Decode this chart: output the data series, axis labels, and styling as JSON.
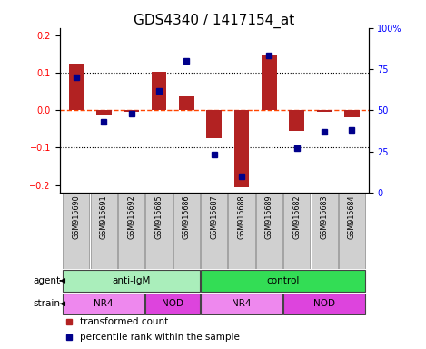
{
  "title": "GDS4340 / 1417154_at",
  "samples": [
    "GSM915690",
    "GSM915691",
    "GSM915692",
    "GSM915685",
    "GSM915686",
    "GSM915687",
    "GSM915688",
    "GSM915689",
    "GSM915682",
    "GSM915683",
    "GSM915684"
  ],
  "transformed_count": [
    0.125,
    -0.015,
    -0.005,
    0.102,
    0.038,
    -0.075,
    -0.205,
    0.148,
    -0.055,
    -0.005,
    -0.02
  ],
  "percentile_rank": [
    70,
    43,
    48,
    62,
    80,
    23,
    10,
    83,
    27,
    37,
    38
  ],
  "ylim_left": [
    -0.22,
    0.22
  ],
  "ylim_right": [
    0,
    100
  ],
  "yticks_left": [
    -0.2,
    -0.1,
    0.0,
    0.1,
    0.2
  ],
  "yticks_right": [
    0,
    25,
    50,
    75,
    100
  ],
  "ytick_labels_right": [
    "0",
    "25",
    "50",
    "75",
    "100%"
  ],
  "bar_color": "#B22222",
  "dot_color": "#00008B",
  "zero_line_color": "#FF4500",
  "grid_color": "black",
  "agent_groups": [
    {
      "label": "anti-IgM",
      "start": 0,
      "end": 5,
      "color": "#AAEEBB"
    },
    {
      "label": "control",
      "start": 5,
      "end": 11,
      "color": "#33DD55"
    }
  ],
  "strain_groups": [
    {
      "label": "NR4",
      "start": 0,
      "end": 3,
      "color": "#EE88EE"
    },
    {
      "label": "NOD",
      "start": 3,
      "end": 5,
      "color": "#DD44DD"
    },
    {
      "label": "NR4",
      "start": 5,
      "end": 8,
      "color": "#EE88EE"
    },
    {
      "label": "NOD",
      "start": 8,
      "end": 11,
      "color": "#DD44DD"
    }
  ],
  "legend_items": [
    {
      "label": "transformed count",
      "color": "#B22222",
      "marker": "s"
    },
    {
      "label": "percentile rank within the sample",
      "color": "#00008B",
      "marker": "s"
    }
  ],
  "tick_fontsize": 7,
  "title_fontsize": 11,
  "sample_fontsize": 5.8,
  "row_fontsize": 7.5,
  "legend_fontsize": 7.5
}
